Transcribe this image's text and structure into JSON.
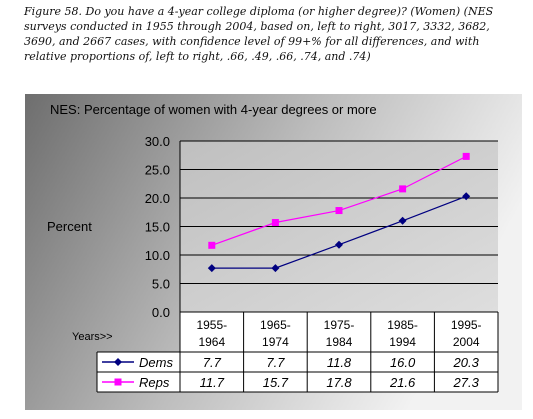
{
  "figure": {
    "caption": "Figure 58. Do you have a 4-year college diploma (or higher degree)? (Women) (NES surveys conducted in 1955 through 2004, based on, left to right, 3017, 3332, 3682, 3690, and 2667 cases, with confidence level of 99+% for all differences, and with relative proportions of, left to right, .66, .49, .66, .74, and .74)"
  },
  "chart_data": {
    "type": "line",
    "title": "NES:  Percentage of women with 4-year degrees or more",
    "ylabel": "Percent",
    "xlabel": "Years>>",
    "ylim": [
      0,
      30
    ],
    "yticks": [
      "0.0",
      "5.0",
      "10.0",
      "15.0",
      "20.0",
      "25.0",
      "30.0"
    ],
    "grid": true,
    "categories": [
      [
        "1955-",
        "1964"
      ],
      [
        "1965-",
        "1974"
      ],
      [
        "1975-",
        "1984"
      ],
      [
        "1985-",
        "1994"
      ],
      [
        "1995-",
        "2004"
      ]
    ],
    "series": [
      {
        "name": "Dems",
        "color": "#000080",
        "marker": "diamond",
        "values": [
          7.7,
          7.7,
          11.8,
          16.0,
          20.3
        ],
        "labels": [
          "7.7",
          "7.7",
          "11.8",
          "16.0",
          "20.3"
        ]
      },
      {
        "name": "Reps",
        "color": "#ff00ff",
        "marker": "square",
        "values": [
          11.7,
          15.7,
          17.8,
          21.6,
          27.3
        ],
        "labels": [
          "11.7",
          "15.7",
          "17.8",
          "21.6",
          "27.3"
        ]
      }
    ],
    "background": {
      "dark": "#707070",
      "light": "#eaeaea",
      "plot": "#c8c8c8"
    }
  }
}
